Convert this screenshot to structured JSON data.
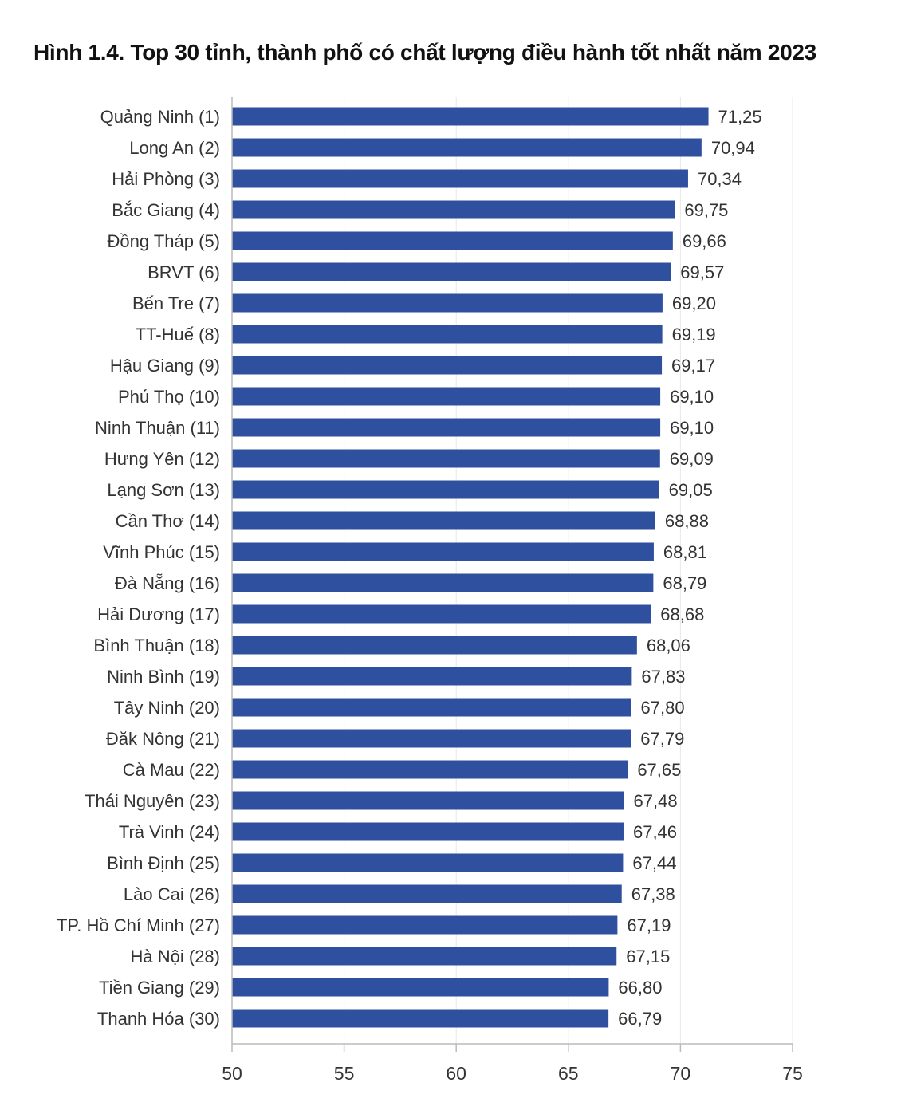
{
  "chart_data": {
    "type": "bar",
    "orientation": "horizontal",
    "title": "Hình 1.4. Top 30 tỉnh, thành phố có chất lượng điều hành tốt nhất năm 2023",
    "xlabel": "",
    "ylabel": "",
    "xlim": [
      50,
      75
    ],
    "xticks": [
      "50",
      "55",
      "60",
      "65",
      "70",
      "75"
    ],
    "grid": true,
    "bar_color": "#2F4F9F",
    "categories": [
      "Quảng Ninh (1)",
      "Long An (2)",
      "Hải Phòng (3)",
      "Bắc Giang (4)",
      "Đồng Tháp (5)",
      "BRVT (6)",
      "Bến Tre (7)",
      "TT-Huế (8)",
      "Hậu Giang (9)",
      "Phú Thọ (10)",
      "Ninh Thuận (11)",
      "Hưng Yên (12)",
      "Lạng Sơn (13)",
      "Cần Thơ (14)",
      "Vĩnh Phúc (15)",
      "Đà Nẵng (16)",
      "Hải Dương (17)",
      "Bình Thuận (18)",
      "Ninh Bình (19)",
      "Tây Ninh (20)",
      "Đăk Nông (21)",
      "Cà Mau (22)",
      "Thái Nguyên (23)",
      "Trà Vinh (24)",
      "Bình Định (25)",
      "Lào Cai (26)",
      "TP. Hồ Chí Minh (27)",
      "Hà Nội (28)",
      "Tiền Giang (29)",
      "Thanh Hóa (30)"
    ],
    "values": [
      71.25,
      70.94,
      70.34,
      69.75,
      69.66,
      69.57,
      69.2,
      69.19,
      69.17,
      69.1,
      69.1,
      69.09,
      69.05,
      68.88,
      68.81,
      68.79,
      68.68,
      68.06,
      67.83,
      67.8,
      67.79,
      67.65,
      67.48,
      67.46,
      67.44,
      67.38,
      67.19,
      67.15,
      66.8,
      66.79
    ],
    "value_labels": [
      "71,25",
      "70,94",
      "70,34",
      "69,75",
      "69,66",
      "69,57",
      "69,20",
      "69,19",
      "69,17",
      "69,10",
      "69,10",
      "69,09",
      "69,05",
      "68,88",
      "68,81",
      "68,79",
      "68,68",
      "68,06",
      "67,83",
      "67,80",
      "67,79",
      "67,65",
      "67,48",
      "67,46",
      "67,44",
      "67,38",
      "67,19",
      "67,15",
      "66,80",
      "66,79"
    ]
  }
}
